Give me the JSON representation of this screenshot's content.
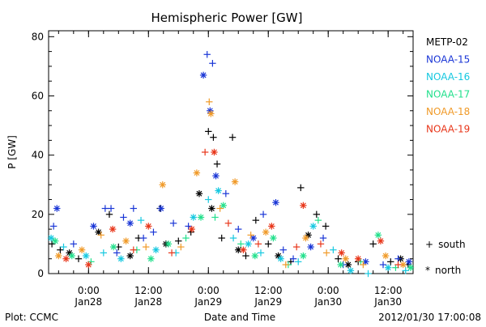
{
  "chart_data": {
    "type": "scatter",
    "title": "Hemispheric Power [GW]",
    "xlabel": "Date and Time",
    "ylabel": "P [GW]",
    "ylim": [
      0,
      82
    ],
    "y_ticks": [
      0,
      20,
      40,
      60,
      80
    ],
    "xlim": [
      "2012-01-27T16:00",
      "2012-01-30T17:00"
    ],
    "x_ticks": [
      {
        "t": "2012-01-28T00:00",
        "time": "0:00",
        "date": "Jan28"
      },
      {
        "t": "2012-01-28T12:00",
        "time": "12:00",
        "date": "Jan28"
      },
      {
        "t": "2012-01-29T00:00",
        "time": "0:00",
        "date": "Jan29"
      },
      {
        "t": "2012-01-29T12:00",
        "time": "12:00",
        "date": "Jan29"
      },
      {
        "t": "2012-01-30T00:00",
        "time": "0:00",
        "date": "Jan30"
      },
      {
        "t": "2012-01-30T12:00",
        "time": "12:00",
        "date": "Jan30"
      }
    ],
    "minor_tick_hours": 3,
    "grid": false,
    "legend_position": "right",
    "marker_legend": [
      {
        "symbol": "+",
        "label": "south"
      },
      {
        "symbol": "*",
        "label": "north"
      }
    ],
    "series": [
      {
        "name": "METP-02",
        "color": "#000000",
        "points": [
          [
            "2012-01-27T16:40",
            10,
            "+"
          ],
          [
            "2012-01-27T18:20",
            8,
            "+"
          ],
          [
            "2012-01-27T20:10",
            7,
            "*"
          ],
          [
            "2012-01-27T22:00",
            5,
            "+"
          ],
          [
            "2012-01-28T02:00",
            14,
            "*"
          ],
          [
            "2012-01-28T04:10",
            20,
            "+"
          ],
          [
            "2012-01-28T06:00",
            9,
            "+"
          ],
          [
            "2012-01-28T08:20",
            6,
            "*"
          ],
          [
            "2012-01-28T10:00",
            12,
            "+"
          ],
          [
            "2012-01-28T14:20",
            22,
            "+"
          ],
          [
            "2012-01-28T15:30",
            10,
            "*"
          ],
          [
            "2012-01-28T18:00",
            11,
            "+"
          ],
          [
            "2012-01-28T20:30",
            14,
            "+"
          ],
          [
            "2012-01-28T22:10",
            27,
            "*"
          ],
          [
            "2012-01-29T00:00",
            48,
            "+"
          ],
          [
            "2012-01-29T01:00",
            46,
            "+"
          ],
          [
            "2012-01-29T01:45",
            37,
            "+"
          ],
          [
            "2012-01-29T00:40",
            22,
            "*"
          ],
          [
            "2012-01-29T02:40",
            12,
            "+"
          ],
          [
            "2012-01-29T04:50",
            46,
            "+"
          ],
          [
            "2012-01-29T06:00",
            8,
            "*"
          ],
          [
            "2012-01-29T07:30",
            6,
            "+"
          ],
          [
            "2012-01-29T09:30",
            18,
            "+"
          ],
          [
            "2012-01-29T12:00",
            10,
            "+"
          ],
          [
            "2012-01-29T14:00",
            6,
            "*"
          ],
          [
            "2012-01-29T16:30",
            4,
            "+"
          ],
          [
            "2012-01-29T18:30",
            29,
            "+"
          ],
          [
            "2012-01-29T20:00",
            13,
            "*"
          ],
          [
            "2012-01-29T21:40",
            20,
            "+"
          ],
          [
            "2012-01-29T23:30",
            16,
            "+"
          ],
          [
            "2012-01-30T02:00",
            5,
            "+"
          ],
          [
            "2012-01-30T04:00",
            3,
            "*"
          ],
          [
            "2012-01-30T06:00",
            4,
            "+"
          ],
          [
            "2012-01-30T09:00",
            10,
            "+"
          ],
          [
            "2012-01-30T12:30",
            4,
            "+"
          ],
          [
            "2012-01-30T14:30",
            5,
            "*"
          ],
          [
            "2012-01-30T16:00",
            3,
            "+"
          ]
        ]
      },
      {
        "name": "NOAA-15",
        "color": "#1a36d6",
        "points": [
          [
            "2012-01-27T17:00",
            16,
            "+"
          ],
          [
            "2012-01-27T17:40",
            22,
            "*"
          ],
          [
            "2012-01-27T21:00",
            10,
            "+"
          ],
          [
            "2012-01-28T01:00",
            16,
            "*"
          ],
          [
            "2012-01-28T03:20",
            22,
            "+"
          ],
          [
            "2012-01-28T04:30",
            22,
            "+"
          ],
          [
            "2012-01-28T05:40",
            7,
            "+"
          ],
          [
            "2012-01-28T07:00",
            19,
            "+"
          ],
          [
            "2012-01-28T08:20",
            17,
            "*"
          ],
          [
            "2012-01-28T09:00",
            22,
            "+"
          ],
          [
            "2012-01-28T11:00",
            12,
            "+"
          ],
          [
            "2012-01-28T13:00",
            14,
            "+"
          ],
          [
            "2012-01-28T14:30",
            22,
            "*"
          ],
          [
            "2012-01-28T17:00",
            17,
            "+"
          ],
          [
            "2012-01-28T20:00",
            16,
            "+"
          ],
          [
            "2012-01-28T23:00",
            67,
            "*"
          ],
          [
            "2012-01-28T23:45",
            74,
            "+"
          ],
          [
            "2012-01-29T00:20",
            55,
            "*"
          ],
          [
            "2012-01-29T00:50",
            71,
            "+"
          ],
          [
            "2012-01-29T01:30",
            33,
            "*"
          ],
          [
            "2012-01-29T03:30",
            27,
            "+"
          ],
          [
            "2012-01-29T06:00",
            15,
            "+"
          ],
          [
            "2012-01-29T09:00",
            12,
            "*"
          ],
          [
            "2012-01-29T11:00",
            20,
            "+"
          ],
          [
            "2012-01-29T13:30",
            24,
            "*"
          ],
          [
            "2012-01-29T15:00",
            8,
            "+"
          ],
          [
            "2012-01-29T17:00",
            5,
            "+"
          ],
          [
            "2012-01-29T20:30",
            9,
            "*"
          ],
          [
            "2012-01-29T23:00",
            12,
            "+"
          ],
          [
            "2012-01-30T03:00",
            3,
            "+"
          ],
          [
            "2012-01-30T07:30",
            4,
            "*"
          ],
          [
            "2012-01-30T11:00",
            3,
            "+"
          ],
          [
            "2012-01-30T14:00",
            5,
            "+"
          ],
          [
            "2012-01-30T16:10",
            4,
            "*"
          ]
        ]
      },
      {
        "name": "NOAA-16",
        "color": "#16c8e0",
        "points": [
          [
            "2012-01-27T16:30",
            12,
            "*"
          ],
          [
            "2012-01-27T19:00",
            9,
            "+"
          ],
          [
            "2012-01-27T23:30",
            6,
            "*"
          ],
          [
            "2012-01-28T03:00",
            7,
            "+"
          ],
          [
            "2012-01-28T06:30",
            5,
            "*"
          ],
          [
            "2012-01-28T10:30",
            18,
            "+"
          ],
          [
            "2012-01-28T13:30",
            8,
            "*"
          ],
          [
            "2012-01-28T17:30",
            7,
            "+"
          ],
          [
            "2012-01-28T21:00",
            19,
            "*"
          ],
          [
            "2012-01-29T00:00",
            25,
            "+"
          ],
          [
            "2012-01-29T02:00",
            28,
            "*"
          ],
          [
            "2012-01-29T05:00",
            12,
            "+"
          ],
          [
            "2012-01-29T08:00",
            10,
            "*"
          ],
          [
            "2012-01-29T10:30",
            7,
            "+"
          ],
          [
            "2012-01-29T14:30",
            5,
            "*"
          ],
          [
            "2012-01-29T18:00",
            4,
            "+"
          ],
          [
            "2012-01-29T21:00",
            16,
            "*"
          ],
          [
            "2012-01-30T01:00",
            8,
            "+"
          ],
          [
            "2012-01-30T04:30",
            1,
            "*"
          ],
          [
            "2012-01-30T08:00",
            0,
            "+"
          ],
          [
            "2012-01-30T12:00",
            2,
            "*"
          ],
          [
            "2012-01-30T15:30",
            1,
            "+"
          ]
        ]
      },
      {
        "name": "NOAA-17",
        "color": "#22e08c",
        "points": [
          [
            "2012-01-27T17:20",
            11,
            "*"
          ],
          [
            "2012-01-27T20:40",
            6,
            "*"
          ],
          [
            "2012-01-28T00:30",
            4,
            "+"
          ],
          [
            "2012-01-28T05:00",
            9,
            "*"
          ],
          [
            "2012-01-28T09:40",
            8,
            "+"
          ],
          [
            "2012-01-28T12:30",
            5,
            "*"
          ],
          [
            "2012-01-28T16:00",
            10,
            "*"
          ],
          [
            "2012-01-28T19:30",
            12,
            "+"
          ],
          [
            "2012-01-28T22:30",
            19,
            "*"
          ],
          [
            "2012-01-29T01:20",
            19,
            "+"
          ],
          [
            "2012-01-29T03:00",
            23,
            "*"
          ],
          [
            "2012-01-29T06:30",
            10,
            "+"
          ],
          [
            "2012-01-29T09:20",
            6,
            "*"
          ],
          [
            "2012-01-29T13:00",
            12,
            "*"
          ],
          [
            "2012-01-29T16:00",
            3,
            "+"
          ],
          [
            "2012-01-29T19:00",
            6,
            "*"
          ],
          [
            "2012-01-29T22:00",
            18,
            "+"
          ],
          [
            "2012-01-30T02:30",
            3,
            "*"
          ],
          [
            "2012-01-30T06:30",
            4,
            "+"
          ],
          [
            "2012-01-30T10:00",
            13,
            "*"
          ],
          [
            "2012-01-30T13:30",
            2,
            "+"
          ],
          [
            "2012-01-30T16:30",
            2,
            "*"
          ]
        ]
      },
      {
        "name": "NOAA-18",
        "color": "#f09a28",
        "points": [
          [
            "2012-01-27T18:00",
            6,
            "*"
          ],
          [
            "2012-01-27T22:40",
            8,
            "*"
          ],
          [
            "2012-01-28T02:30",
            13,
            "+"
          ],
          [
            "2012-01-28T07:30",
            11,
            "*"
          ],
          [
            "2012-01-28T11:30",
            9,
            "+"
          ],
          [
            "2012-01-28T14:50",
            30,
            "*"
          ],
          [
            "2012-01-28T18:30",
            9,
            "+"
          ],
          [
            "2012-01-28T21:40",
            34,
            "*"
          ],
          [
            "2012-01-29T00:10",
            58,
            "+"
          ],
          [
            "2012-01-29T00:30",
            54,
            "*"
          ],
          [
            "2012-01-29T02:20",
            22,
            "+"
          ],
          [
            "2012-01-29T05:20",
            31,
            "*"
          ],
          [
            "2012-01-29T08:30",
            13,
            "+"
          ],
          [
            "2012-01-29T11:30",
            14,
            "*"
          ],
          [
            "2012-01-29T15:30",
            3,
            "+"
          ],
          [
            "2012-01-29T19:30",
            12,
            "*"
          ],
          [
            "2012-01-29T23:40",
            7,
            "+"
          ],
          [
            "2012-01-30T03:30",
            5,
            "*"
          ],
          [
            "2012-01-30T07:00",
            3,
            "+"
          ],
          [
            "2012-01-30T11:30",
            6,
            "*"
          ],
          [
            "2012-01-30T15:00",
            3,
            "*"
          ]
        ]
      },
      {
        "name": "NOAA-19",
        "color": "#e8361a",
        "points": [
          [
            "2012-01-27T19:30",
            5,
            "*"
          ],
          [
            "2012-01-28T00:00",
            3,
            "*"
          ],
          [
            "2012-01-28T04:50",
            15,
            "*"
          ],
          [
            "2012-01-28T09:00",
            8,
            "+"
          ],
          [
            "2012-01-28T12:00",
            16,
            "*"
          ],
          [
            "2012-01-28T16:40",
            7,
            "+"
          ],
          [
            "2012-01-28T20:40",
            15,
            "*"
          ],
          [
            "2012-01-28T23:20",
            41,
            "+"
          ],
          [
            "2012-01-29T01:10",
            41,
            "*"
          ],
          [
            "2012-01-29T04:00",
            17,
            "+"
          ],
          [
            "2012-01-29T07:00",
            8,
            "*"
          ],
          [
            "2012-01-29T10:00",
            10,
            "+"
          ],
          [
            "2012-01-29T12:40",
            16,
            "*"
          ],
          [
            "2012-01-29T17:40",
            9,
            "+"
          ],
          [
            "2012-01-29T19:00",
            23,
            "*"
          ],
          [
            "2012-01-29T22:30",
            10,
            "+"
          ],
          [
            "2012-01-30T02:40",
            7,
            "*"
          ],
          [
            "2012-01-30T06:00",
            5,
            "*"
          ],
          [
            "2012-01-30T10:30",
            11,
            "*"
          ],
          [
            "2012-01-30T14:00",
            3,
            "+"
          ]
        ]
      }
    ]
  },
  "footer": {
    "left": "Plot: CCMC",
    "right": "2012/01/30 17:00:08"
  }
}
